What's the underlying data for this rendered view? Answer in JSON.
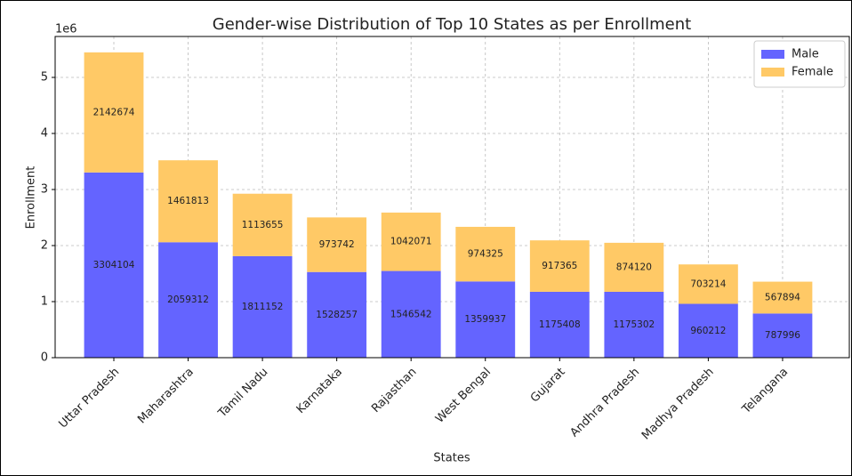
{
  "chart_data": {
    "type": "bar",
    "stacked": true,
    "title": "Gender-wise Distribution of Top 10 States as per Enrollment",
    "x_label": "States",
    "y_label": "Enrollment",
    "y_offset_label": "1e6",
    "categories": [
      "Uttar Pradesh",
      "Maharashtra",
      "Tamil Nadu",
      "Karnataka",
      "Rajasthan",
      "West Bengal",
      "Gujarat",
      "Andhra Pradesh",
      "Madhya Pradesh",
      "Telangana"
    ],
    "series": [
      {
        "name": "Male",
        "color": "#6464ff",
        "values": [
          3304104,
          2059312,
          1811152,
          1528257,
          1546542,
          1359937,
          1175408,
          1175302,
          960212,
          787996
        ]
      },
      {
        "name": "Female",
        "color": "#ffc966",
        "values": [
          2142674,
          1461813,
          1113655,
          973742,
          1042071,
          974325,
          917365,
          874120,
          703214,
          567894
        ]
      }
    ],
    "ylim": [
      0,
      5730000
    ],
    "yticks": [
      0,
      {
        "value": 1000000,
        "label": "1"
      },
      {
        "value": 2000000,
        "label": "2"
      },
      {
        "value": 3000000,
        "label": "3"
      },
      {
        "value": 4000000,
        "label": "4"
      },
      {
        "value": 5000000,
        "label": "5"
      }
    ],
    "grid": true,
    "legend": "upper right"
  }
}
